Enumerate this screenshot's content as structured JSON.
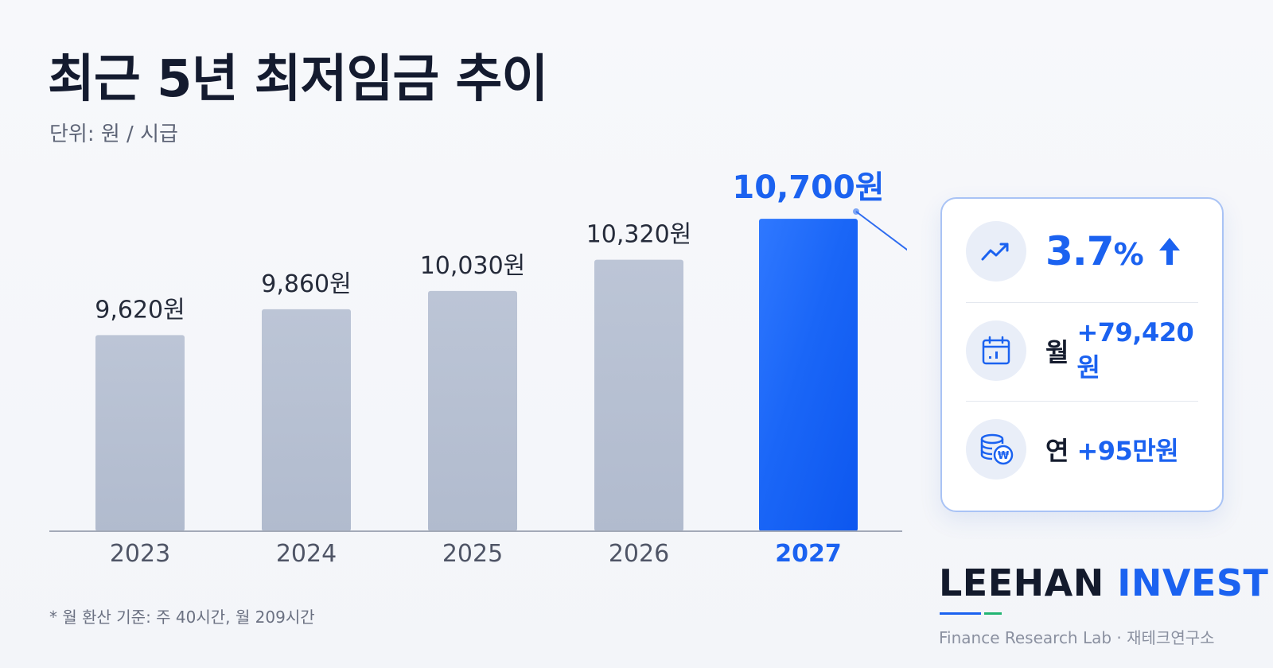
{
  "title": "최근 5년 최저임금 추이",
  "unit": "단위: 원 / 시급",
  "chart_data": {
    "type": "bar",
    "categories": [
      "2023",
      "2024",
      "2025",
      "2026",
      "2027"
    ],
    "values": [
      9620,
      9860,
      10030,
      10320,
      10700
    ],
    "value_labels": [
      "9,620원",
      "9,860원",
      "10,030원",
      "10,320원",
      "10,700원"
    ],
    "highlight_index": 4,
    "ylim": [
      7800,
      10900
    ],
    "grid": false,
    "colors": {
      "bar": "#b7c1d3",
      "highlight": "#1160f5",
      "axis": "#a3aab8",
      "label": "#252b3a",
      "year": "#4f5566"
    }
  },
  "panel": {
    "growth": {
      "value": "3.7",
      "unit": "%",
      "icon": "trending-up-icon"
    },
    "monthly": {
      "label": "월",
      "value": "+79,420원",
      "icon": "calendar-icon"
    },
    "yearly": {
      "label": "연",
      "value": "+95만원",
      "icon": "coins-won-icon"
    }
  },
  "footnote": "* 월 환산 기준: 주 40시간, 월 209시간",
  "brand": {
    "name_dark": "LEEHAN",
    "name_blue": "INVEST",
    "tagline": "Finance Research Lab · 재테크연구소"
  },
  "accent": "#1b62f0"
}
